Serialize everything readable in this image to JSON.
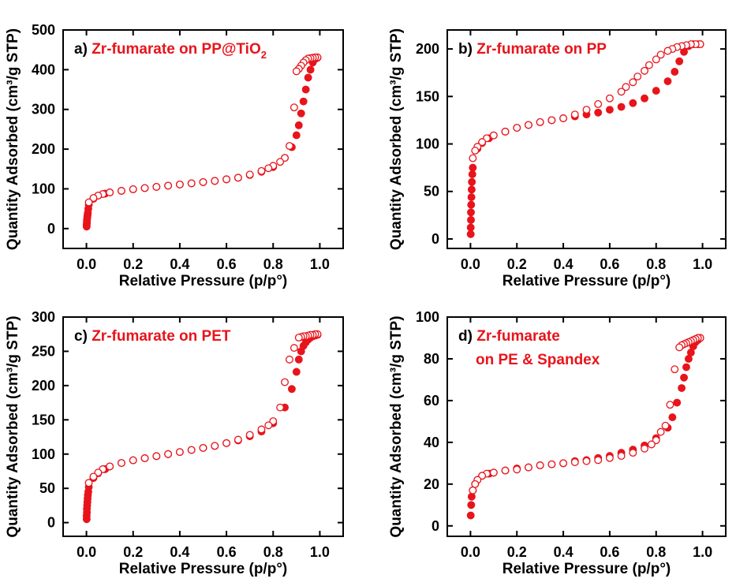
{
  "chart_data": [
    {
      "type": "scatter",
      "panel": "a",
      "title_prefix": "a) ",
      "title_lines": [
        "Zr-fumarate on PP@TiO"
      ],
      "title_subscript": "2",
      "xlabel": "Relative Pressure (p/p°)",
      "ylabel": "Quantity Adsorbed (cm³/g STP)",
      "xlim": [
        -0.1,
        1.1
      ],
      "ylim": [
        -50,
        500
      ],
      "xticks": [
        "0.0",
        "0.2",
        "0.4",
        "0.6",
        "0.8",
        "1.0"
      ],
      "yticks": [
        "0",
        "100",
        "200",
        "300",
        "400",
        "500"
      ],
      "colors": {
        "marker": "#e8141b",
        "title": "#e8141b"
      },
      "series": [
        {
          "kind": "filled",
          "x": [
            0.001,
            0.001,
            0.002,
            0.002,
            0.003,
            0.004,
            0.005,
            0.006,
            0.008,
            0.01,
            0.03,
            0.05,
            0.08,
            0.1,
            0.15,
            0.2,
            0.25,
            0.3,
            0.35,
            0.4,
            0.45,
            0.5,
            0.55,
            0.6,
            0.65,
            0.7,
            0.75,
            0.8,
            0.85,
            0.88,
            0.9,
            0.91,
            0.92,
            0.93,
            0.94,
            0.95,
            0.96,
            0.97,
            0.98,
            0.99
          ],
          "y": [
            5,
            10,
            15,
            20,
            25,
            30,
            35,
            40,
            50,
            60,
            75,
            83,
            88,
            91,
            95,
            99,
            102,
            105,
            108,
            111,
            114,
            117,
            120,
            124,
            128,
            135,
            143,
            155,
            178,
            205,
            235,
            260,
            290,
            320,
            350,
            380,
            400,
            418,
            427,
            430
          ]
        },
        {
          "kind": "open",
          "x": [
            0.99,
            0.98,
            0.97,
            0.96,
            0.95,
            0.94,
            0.93,
            0.92,
            0.91,
            0.9,
            0.89,
            0.87,
            0.85,
            0.83,
            0.8,
            0.78,
            0.75,
            0.7,
            0.65,
            0.6,
            0.55,
            0.5,
            0.45,
            0.4,
            0.35,
            0.3,
            0.25,
            0.2,
            0.15,
            0.1,
            0.07,
            0.05,
            0.03,
            0.01
          ],
          "y": [
            431,
            431,
            430,
            429,
            428,
            424,
            418,
            410,
            402,
            396,
            305,
            208,
            178,
            168,
            158,
            152,
            145,
            136,
            128,
            124,
            120,
            117,
            114,
            111,
            108,
            105,
            102,
            99,
            95,
            91,
            87,
            83,
            77,
            66
          ]
        }
      ]
    },
    {
      "type": "scatter",
      "panel": "b",
      "title_prefix": "b) ",
      "title_lines": [
        "Zr-fumarate on PP"
      ],
      "title_subscript": "",
      "xlabel": "Relative Pressure (p/p°)",
      "ylabel": "Quantity Adsorbed (cm³/g STP)",
      "xlim": [
        -0.1,
        1.1
      ],
      "ylim": [
        -10,
        220
      ],
      "xticks": [
        "0.0",
        "0.2",
        "0.4",
        "0.6",
        "0.8",
        "1.0"
      ],
      "yticks": [
        "0",
        "50",
        "100",
        "150",
        "200"
      ],
      "colors": {
        "marker": "#e8141b",
        "title": "#e8141b"
      },
      "series": [
        {
          "kind": "filled",
          "x": [
            0.001,
            0.001,
            0.002,
            0.002,
            0.003,
            0.004,
            0.005,
            0.006,
            0.008,
            0.01,
            0.03,
            0.05,
            0.08,
            0.1,
            0.15,
            0.2,
            0.25,
            0.3,
            0.35,
            0.4,
            0.45,
            0.5,
            0.55,
            0.6,
            0.65,
            0.7,
            0.75,
            0.8,
            0.85,
            0.88,
            0.9,
            0.92,
            0.94,
            0.96,
            0.98,
            0.99
          ],
          "y": [
            5,
            12,
            20,
            28,
            36,
            44,
            52,
            60,
            68,
            75,
            95,
            101,
            106,
            109,
            113,
            117,
            120,
            123,
            125,
            127,
            129,
            131,
            133,
            136,
            139,
            143,
            148,
            156,
            166,
            176,
            187,
            197,
            203,
            205,
            205,
            205
          ]
        },
        {
          "kind": "open",
          "x": [
            0.99,
            0.97,
            0.95,
            0.93,
            0.91,
            0.89,
            0.87,
            0.85,
            0.82,
            0.8,
            0.77,
            0.75,
            0.72,
            0.7,
            0.67,
            0.65,
            0.6,
            0.55,
            0.5,
            0.45,
            0.4,
            0.35,
            0.3,
            0.25,
            0.2,
            0.15,
            0.1,
            0.07,
            0.05,
            0.03,
            0.02,
            0.01
          ],
          "y": [
            205,
            205,
            205,
            204,
            203,
            202,
            200,
            198,
            194,
            189,
            183,
            177,
            171,
            165,
            160,
            155,
            148,
            142,
            136,
            131,
            127,
            125,
            123,
            120,
            117,
            113,
            109,
            106,
            102,
            97,
            93,
            85
          ]
        }
      ]
    },
    {
      "type": "scatter",
      "panel": "c",
      "title_prefix": "c) ",
      "title_lines": [
        "Zr-fumarate on PET"
      ],
      "title_subscript": "",
      "xlabel": "Relative Pressure (p/p°)",
      "ylabel": "Quantity Adsorbed (cm³/g STP)",
      "xlim": [
        -0.1,
        1.1
      ],
      "ylim": [
        -20,
        300
      ],
      "xticks": [
        "0.0",
        "0.2",
        "0.4",
        "0.6",
        "0.8",
        "1.0"
      ],
      "yticks": [
        "0",
        "50",
        "100",
        "150",
        "200",
        "250",
        "300"
      ],
      "colors": {
        "marker": "#e8141b",
        "title": "#e8141b"
      },
      "series": [
        {
          "kind": "filled",
          "x": [
            0.001,
            0.001,
            0.002,
            0.002,
            0.003,
            0.004,
            0.005,
            0.006,
            0.008,
            0.01,
            0.03,
            0.05,
            0.08,
            0.1,
            0.15,
            0.2,
            0.25,
            0.3,
            0.35,
            0.4,
            0.45,
            0.5,
            0.55,
            0.6,
            0.65,
            0.7,
            0.75,
            0.8,
            0.85,
            0.88,
            0.9,
            0.91,
            0.92,
            0.93,
            0.94,
            0.95,
            0.96,
            0.97,
            0.98,
            0.99
          ],
          "y": [
            5,
            10,
            15,
            20,
            25,
            30,
            35,
            40,
            45,
            52,
            65,
            72,
            78,
            82,
            87,
            91,
            94,
            97,
            100,
            103,
            106,
            109,
            112,
            116,
            120,
            126,
            133,
            145,
            168,
            195,
            220,
            238,
            250,
            258,
            263,
            267,
            270,
            272,
            273,
            274
          ]
        },
        {
          "kind": "open",
          "x": [
            0.99,
            0.98,
            0.97,
            0.96,
            0.95,
            0.94,
            0.93,
            0.92,
            0.91,
            0.89,
            0.87,
            0.85,
            0.83,
            0.8,
            0.78,
            0.75,
            0.7,
            0.65,
            0.6,
            0.55,
            0.5,
            0.45,
            0.4,
            0.35,
            0.3,
            0.25,
            0.2,
            0.15,
            0.1,
            0.07,
            0.05,
            0.03,
            0.01
          ],
          "y": [
            275,
            275,
            274,
            274,
            273,
            272,
            272,
            271,
            270,
            255,
            238,
            205,
            168,
            148,
            142,
            136,
            128,
            121,
            116,
            112,
            109,
            106,
            103,
            100,
            97,
            94,
            91,
            87,
            82,
            78,
            73,
            67,
            58
          ]
        }
      ]
    },
    {
      "type": "scatter",
      "panel": "d",
      "title_prefix": "d) ",
      "title_lines": [
        "Zr-fumarate",
        "on PE & Spandex"
      ],
      "title_subscript": "",
      "xlabel": "Relative Pressure (p/p°)",
      "ylabel": "Quantity Adsorbed (cm³/g STP)",
      "xlim": [
        -0.1,
        1.1
      ],
      "ylim": [
        -5,
        100
      ],
      "xticks": [
        "0.0",
        "0.2",
        "0.4",
        "0.6",
        "0.8",
        "1.0"
      ],
      "yticks": [
        "0",
        "20",
        "40",
        "60",
        "80",
        "100"
      ],
      "colors": {
        "marker": "#e8141b",
        "title": "#e8141b"
      },
      "series": [
        {
          "kind": "filled",
          "x": [
            0.001,
            0.003,
            0.005,
            0.01,
            0.02,
            0.03,
            0.05,
            0.08,
            0.1,
            0.15,
            0.2,
            0.25,
            0.3,
            0.35,
            0.4,
            0.45,
            0.5,
            0.55,
            0.6,
            0.65,
            0.7,
            0.75,
            0.8,
            0.85,
            0.87,
            0.89,
            0.91,
            0.92,
            0.93,
            0.94,
            0.95,
            0.96,
            0.97,
            0.98,
            0.99
          ],
          "y": [
            5,
            10,
            14,
            17,
            20,
            22,
            24,
            25,
            25.5,
            26.5,
            27.5,
            28,
            29,
            29.5,
            30,
            31,
            31.5,
            32.5,
            33.5,
            35,
            36.5,
            38.5,
            42,
            47,
            52,
            59,
            66,
            71,
            76,
            80,
            83,
            86,
            88,
            89,
            90
          ]
        },
        {
          "kind": "open",
          "x": [
            0.99,
            0.98,
            0.97,
            0.96,
            0.95,
            0.94,
            0.93,
            0.92,
            0.91,
            0.9,
            0.88,
            0.86,
            0.84,
            0.82,
            0.8,
            0.78,
            0.75,
            0.7,
            0.65,
            0.6,
            0.55,
            0.5,
            0.45,
            0.4,
            0.35,
            0.3,
            0.25,
            0.2,
            0.15,
            0.1,
            0.07,
            0.05,
            0.03,
            0.02,
            0.01
          ],
          "y": [
            90,
            90,
            89.5,
            89,
            88.5,
            88,
            87.5,
            87,
            86.5,
            85.5,
            75,
            58,
            48,
            45,
            41,
            39,
            37,
            35,
            33.5,
            32.5,
            31.5,
            31,
            30.5,
            30,
            29.5,
            29,
            28,
            27,
            26.5,
            25.5,
            25,
            24,
            22,
            20,
            17
          ]
        }
      ]
    }
  ]
}
